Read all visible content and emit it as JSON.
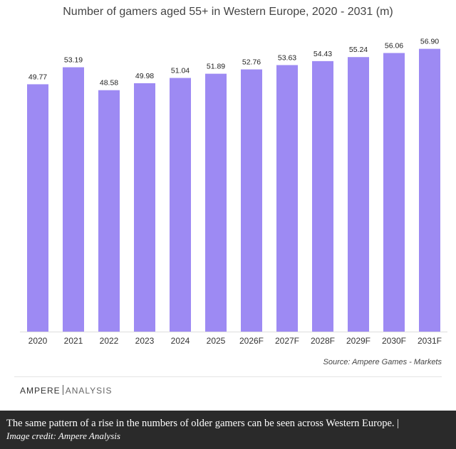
{
  "chart_data": {
    "type": "bar",
    "title": "Number of gamers aged 55+ in Western Europe, 2020 - 2031 (m)",
    "categories": [
      "2020",
      "2021",
      "2022",
      "2023",
      "2024",
      "2025",
      "2026F",
      "2027F",
      "2028F",
      "2029F",
      "2030F",
      "2031F"
    ],
    "values": [
      49.77,
      53.19,
      48.58,
      49.98,
      51.04,
      51.89,
      52.76,
      53.63,
      54.43,
      55.24,
      56.06,
      56.9
    ],
    "value_labels": [
      "49.77",
      "53.19",
      "48.58",
      "49.98",
      "51.04",
      "51.89",
      "52.76",
      "53.63",
      "54.43",
      "55.24",
      "56.06",
      "56.90"
    ],
    "ylim": [
      0,
      61
    ],
    "grid": false,
    "bar_color": "#9d8af3"
  },
  "source": "Source:  Ampere Games - Markets",
  "logo": {
    "part_a": "AMPERE",
    "part_b": "ANALYSIS"
  },
  "caption": {
    "text": "The same pattern of a rise in the numbers of older gamers can be seen across Western Europe. |",
    "credit": "Image credit: Ampere Analysis"
  }
}
